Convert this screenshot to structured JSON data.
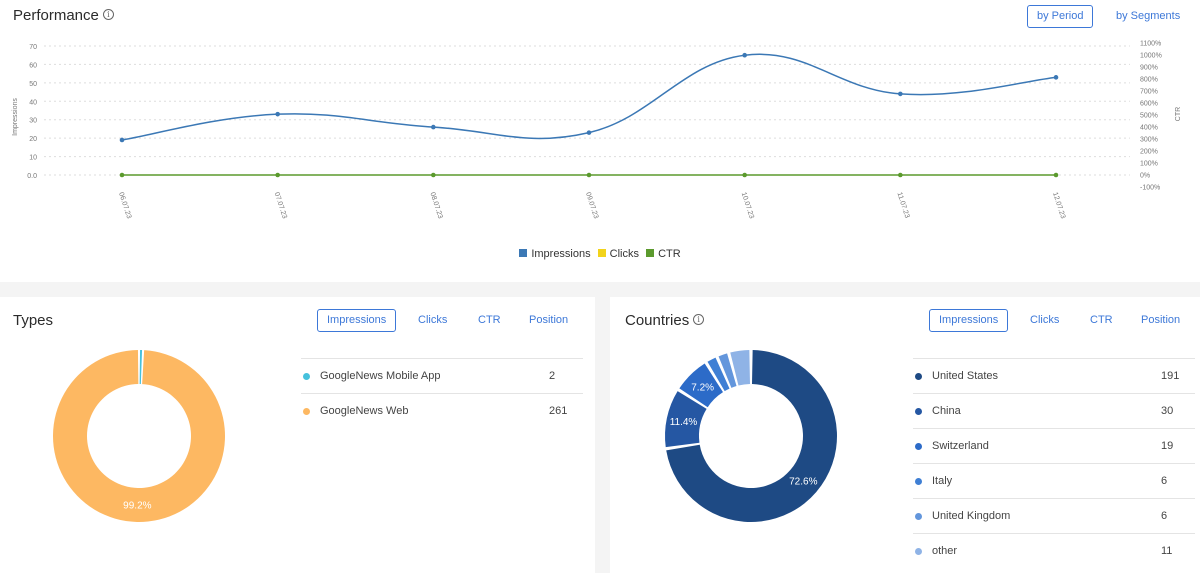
{
  "performance": {
    "title": "Performance",
    "info_icon": "info-circle-icon",
    "view_buttons": [
      {
        "label": "by Period",
        "active": true
      },
      {
        "label": "by Segments",
        "active": false
      }
    ],
    "legend": [
      {
        "label": "Impressions",
        "color": "#3b78b5"
      },
      {
        "label": "Clicks",
        "color": "#f2d31b"
      },
      {
        "label": "CTR",
        "color": "#5b9a2d"
      }
    ]
  },
  "types": {
    "title": "Types",
    "metric_tabs": [
      {
        "label": "Impressions",
        "active": true
      },
      {
        "label": "Clicks",
        "active": false
      },
      {
        "label": "CTR",
        "active": false
      },
      {
        "label": "Position",
        "active": false
      }
    ],
    "items": [
      {
        "name": "GoogleNews Mobile App",
        "value": "2",
        "color": "#46c1dc"
      },
      {
        "name": "GoogleNews Web",
        "value": "261",
        "color": "#fdb862"
      }
    ],
    "donut_label": "99.2%"
  },
  "countries": {
    "title": "Countries",
    "info_icon": "info-circle-icon",
    "metric_tabs": [
      {
        "label": "Impressions",
        "active": true
      },
      {
        "label": "Clicks",
        "active": false
      },
      {
        "label": "CTR",
        "active": false
      },
      {
        "label": "Position",
        "active": false
      }
    ],
    "items": [
      {
        "name": "United States",
        "value": "191",
        "color": "#1e4a84"
      },
      {
        "name": "China",
        "value": "30",
        "color": "#2557a3"
      },
      {
        "name": "Switzerland",
        "value": "19",
        "color": "#2c6bc8"
      },
      {
        "name": "Italy",
        "value": "6",
        "color": "#3f7fd4"
      },
      {
        "name": "United Kingdom",
        "value": "6",
        "color": "#6396dc"
      },
      {
        "name": "other",
        "value": "11",
        "color": "#8fb3e6"
      }
    ],
    "donut_labels": [
      "72.6%",
      "11.4%",
      "7.2%"
    ]
  },
  "chart_data": [
    {
      "type": "line",
      "title": "Performance",
      "x": [
        "06.07.23",
        "07.07.23",
        "08.07.23",
        "09.07.23",
        "10.07.23",
        "11.07.23",
        "12.07.23"
      ],
      "series": [
        {
          "name": "Impressions",
          "axis": "left",
          "color": "#3b78b5",
          "values": [
            19,
            33,
            26,
            23,
            65,
            44,
            53
          ]
        },
        {
          "name": "Clicks",
          "axis": "left",
          "color": "#f2d31b",
          "values": [
            0,
            0,
            0,
            0,
            0,
            0,
            0
          ]
        },
        {
          "name": "CTR",
          "axis": "right",
          "color": "#5b9a2d",
          "values": [
            0,
            0,
            0,
            0,
            0,
            0,
            0
          ]
        }
      ],
      "ylabel": "Impressions",
      "ylabel_right": "CTR",
      "ylim": [
        0,
        70
      ],
      "yticks": [
        "0.0",
        "10",
        "20",
        "30",
        "40",
        "50",
        "60",
        "70"
      ],
      "ylim_right": [
        -100,
        1100
      ],
      "yticks_right": [
        "-100%",
        "0%",
        "100%",
        "200%",
        "300%",
        "400%",
        "500%",
        "600%",
        "700%",
        "800%",
        "900%",
        "1000%",
        "1100%"
      ],
      "grid": true,
      "legend_position": "bottom"
    },
    {
      "type": "pie",
      "title": "Types",
      "categories": [
        "GoogleNews Mobile App",
        "GoogleNews Web"
      ],
      "values": [
        2,
        261
      ],
      "labels": [
        "",
        "99.2%"
      ],
      "donut": true
    },
    {
      "type": "pie",
      "title": "Countries",
      "categories": [
        "United States",
        "China",
        "Switzerland",
        "Italy",
        "United Kingdom",
        "other"
      ],
      "values": [
        191,
        30,
        19,
        6,
        6,
        11
      ],
      "labels": [
        "72.6%",
        "11.4%",
        "7.2%",
        "",
        "",
        ""
      ],
      "donut": true
    }
  ]
}
